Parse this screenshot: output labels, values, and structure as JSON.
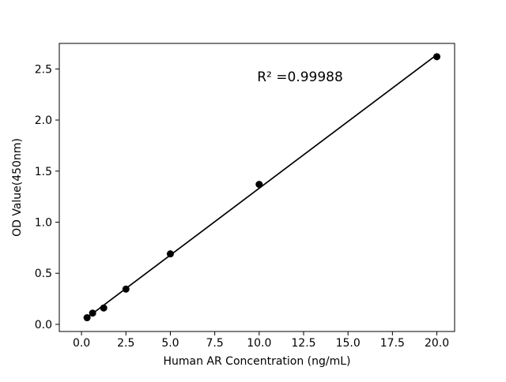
{
  "chart_data": {
    "type": "scatter",
    "title": "",
    "xlabel": "Human AR Concentration (ng/mL)",
    "ylabel": "OD Value(450nm)",
    "x": [
      0.313,
      0.625,
      1.25,
      2.5,
      5.0,
      10.0,
      20.0
    ],
    "y": [
      0.065,
      0.11,
      0.16,
      0.345,
      0.69,
      1.37,
      2.62
    ],
    "fit_line": true,
    "annotation": {
      "text": "R² =0.99988",
      "x": 12.3,
      "y": 2.38
    },
    "xlim": [
      -1.25,
      21.0
    ],
    "ylim": [
      -0.07,
      2.75
    ],
    "xticks": [
      0.0,
      2.5,
      5.0,
      7.5,
      10.0,
      12.5,
      15.0,
      17.5,
      20.0
    ],
    "yticks": [
      0.0,
      0.5,
      1.0,
      1.5,
      2.0,
      2.5
    ],
    "grid": false,
    "legend_position": "none",
    "marker_color": "#000000",
    "line_color": "#000000",
    "background_color": "#ffffff"
  }
}
